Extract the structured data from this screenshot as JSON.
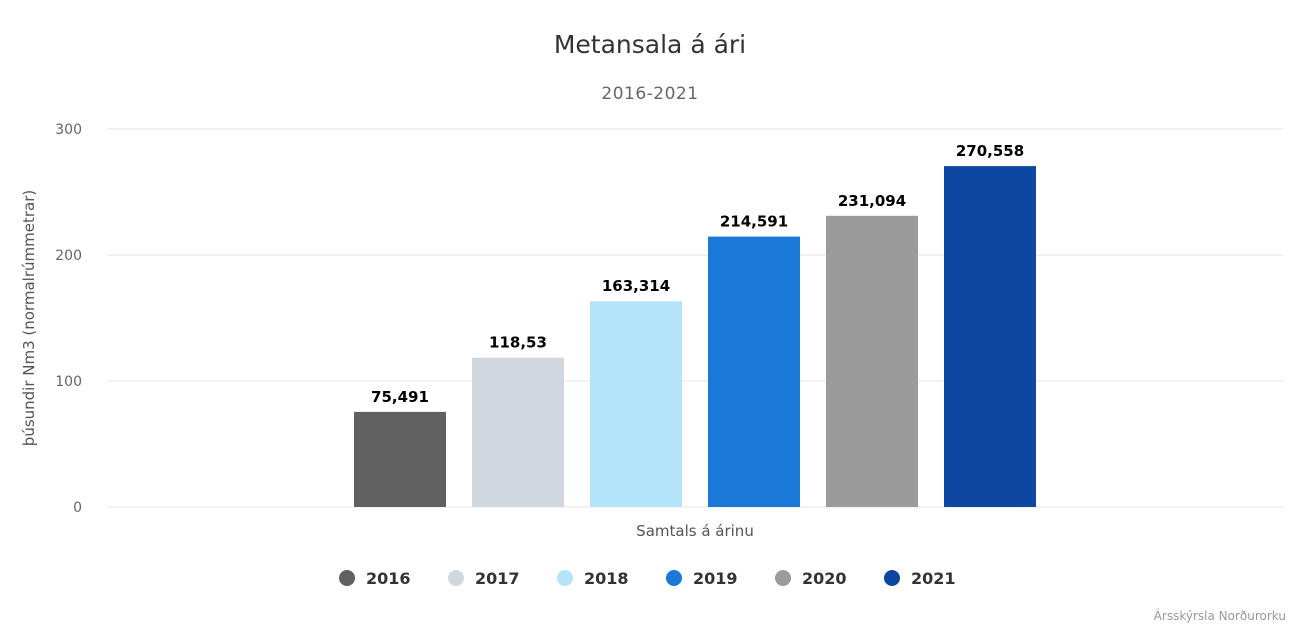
{
  "chart_data": {
    "type": "bar",
    "title": "Metansala á ári",
    "subtitle": "2016-2021",
    "xlabel": "Samtals á árinu",
    "ylabel": "þúsundir Nm3 (normalrúmmetrar)",
    "ylim": [
      0,
      300
    ],
    "yticks": [
      0,
      100,
      200,
      300
    ],
    "grid": true,
    "legend_position": "bottom",
    "categories": [
      "Samtals á árinu"
    ],
    "series": [
      {
        "name": "2016",
        "values": [
          75.491
        ],
        "label": "75,491",
        "color": "#606060"
      },
      {
        "name": "2017",
        "values": [
          118.53
        ],
        "label": "118,53",
        "color": "#cfd8df"
      },
      {
        "name": "2018",
        "values": [
          163.314
        ],
        "label": "163,314",
        "color": "#b4e4fa"
      },
      {
        "name": "2019",
        "values": [
          214.591
        ],
        "label": "214,591",
        "color": "#1a78d6"
      },
      {
        "name": "2020",
        "values": [
          231.094
        ],
        "label": "231,094",
        "color": "#9b9b9b"
      },
      {
        "name": "2021",
        "values": [
          270.558
        ],
        "label": "270,558",
        "color": "#0d47a1"
      }
    ]
  },
  "credit": "Ársskýrsla Norðurorku"
}
